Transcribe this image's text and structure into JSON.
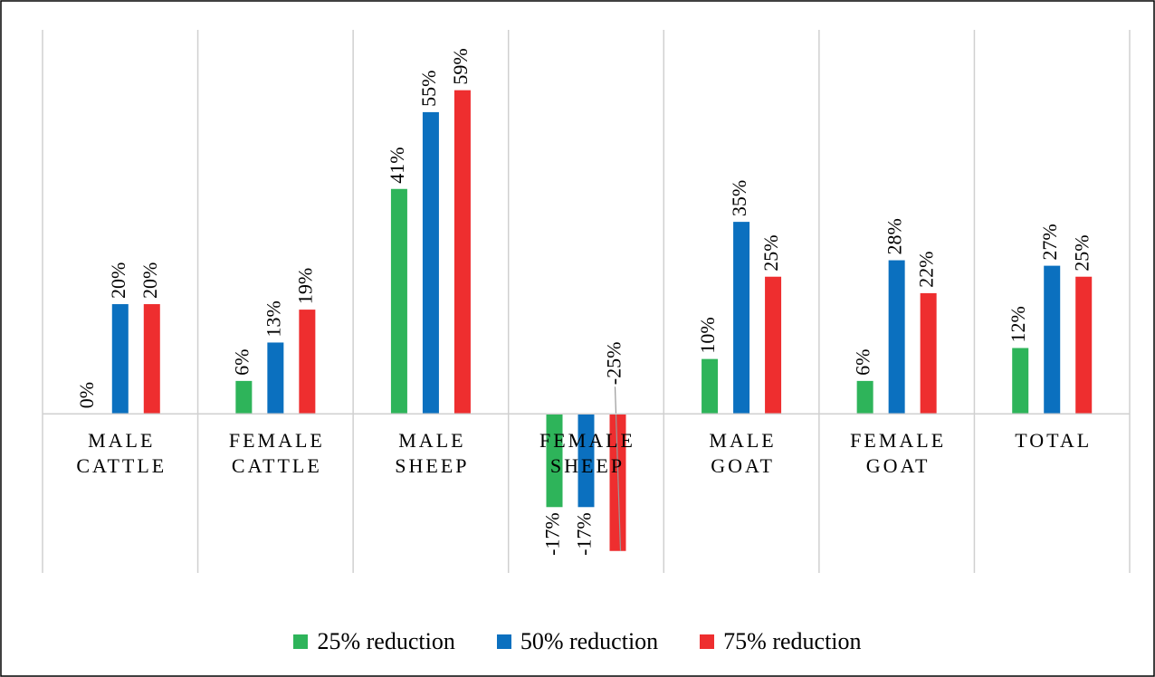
{
  "chart_data": {
    "type": "bar",
    "categories": [
      "MALE CATTLE",
      "FEMALE CATTLE",
      "MALE SHEEP",
      "FEMALE SHEEP",
      "MALE GOAT",
      "FEMALE GOAT",
      "TOTAL"
    ],
    "series": [
      {
        "name": "25% reduction",
        "color": "#2eb45a",
        "values": [
          0,
          6,
          41,
          -17,
          10,
          6,
          12
        ],
        "value_labels": [
          "0%",
          "6%",
          "41%",
          "-17%",
          "10%",
          "6%",
          "12%"
        ]
      },
      {
        "name": "50% reduction",
        "color": "#0b70bf",
        "values": [
          20,
          13,
          55,
          -17,
          35,
          28,
          27
        ],
        "value_labels": [
          "20%",
          "13%",
          "55%",
          "-17%",
          "35%",
          "28%",
          "27%"
        ]
      },
      {
        "name": "75% reduction",
        "color": "#ee2e2f",
        "values": [
          20,
          19,
          59,
          -25,
          25,
          22,
          25
        ],
        "value_labels": [
          "20%",
          "19%",
          "59%",
          "-25%",
          "25%",
          "22%",
          "25%"
        ]
      }
    ],
    "ylim": [
      -29,
      70
    ],
    "legend": "bottom"
  }
}
